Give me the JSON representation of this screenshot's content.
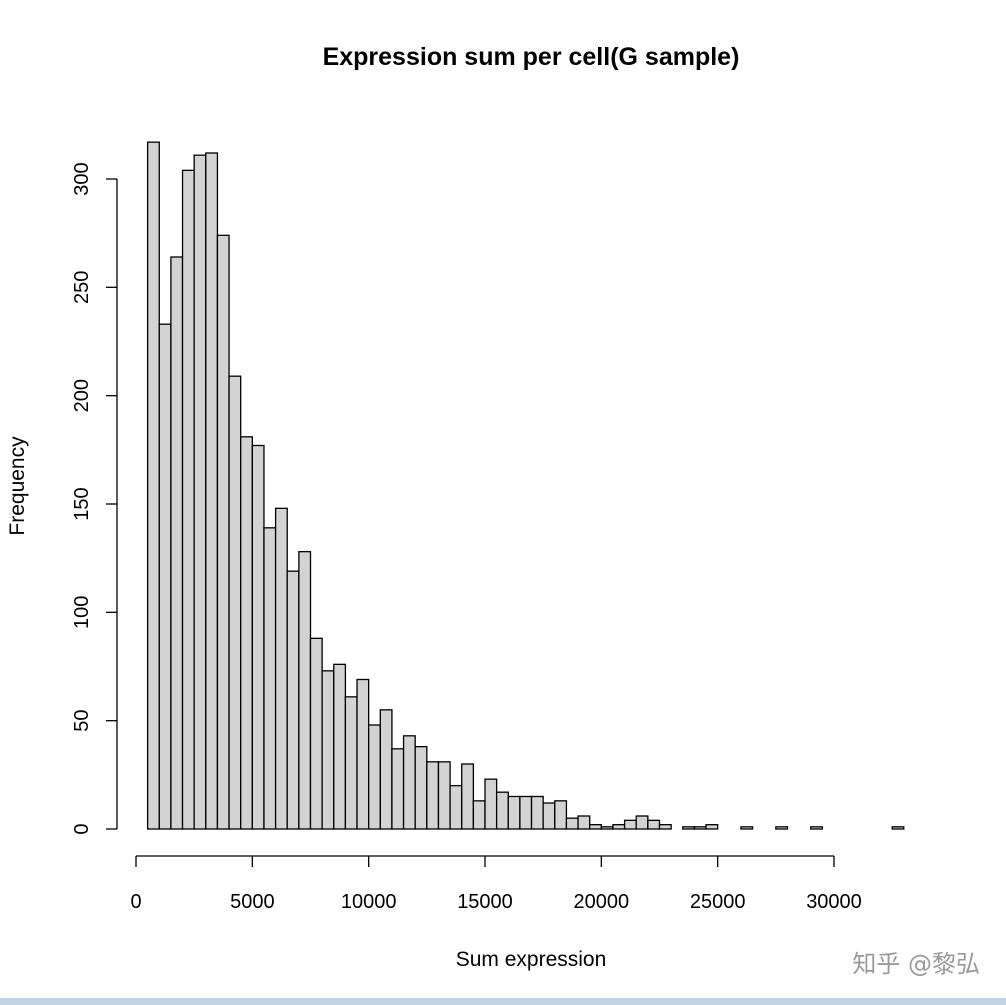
{
  "chart_data": {
    "type": "bar",
    "title": "Expression sum per cell(G sample)",
    "xlabel": "Sum expression",
    "ylabel": "Frequency",
    "bin_width": 500,
    "x_start": 500,
    "xlim": [
      0,
      33500
    ],
    "ylim": [
      0,
      320
    ],
    "x_ticks": [
      0,
      5000,
      10000,
      15000,
      20000,
      25000,
      30000
    ],
    "y_ticks": [
      0,
      50,
      100,
      150,
      200,
      250,
      300
    ],
    "values": [
      317,
      233,
      264,
      304,
      311,
      312,
      274,
      209,
      181,
      177,
      139,
      148,
      119,
      128,
      88,
      73,
      76,
      61,
      69,
      48,
      55,
      37,
      43,
      38,
      31,
      31,
      20,
      30,
      13,
      23,
      17,
      15,
      15,
      15,
      12,
      13,
      5,
      6,
      2,
      1,
      2,
      4,
      6,
      4,
      2,
      0,
      1,
      1,
      2,
      0,
      0,
      1,
      0,
      0,
      1,
      0,
      0,
      1,
      0,
      0,
      0,
      0,
      0,
      0,
      1
    ],
    "grid": false
  },
  "watermark": "知乎 @黎弘"
}
